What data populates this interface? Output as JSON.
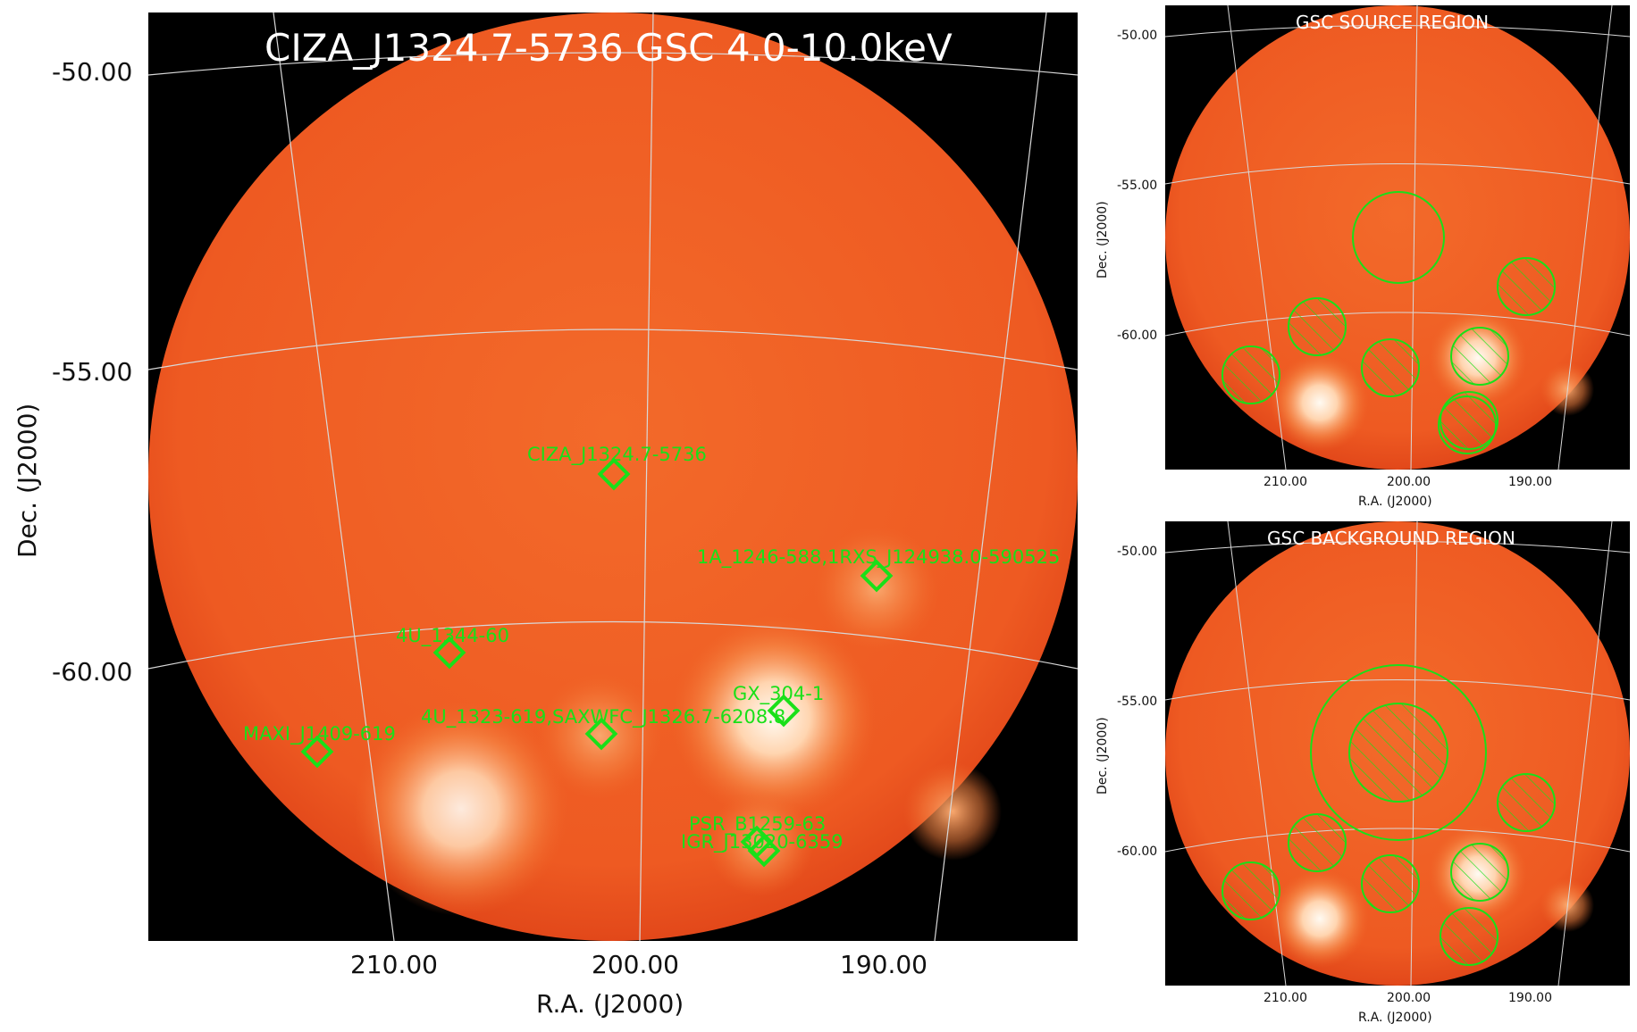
{
  "main": {
    "title": "CIZA_J1324.7-5736 GSC 4.0-10.0keV",
    "ylabel": "Dec. (J2000)",
    "xlabel": "R.A. (J2000)",
    "yticks": [
      "-50.00",
      "-55.00",
      "-60.00"
    ],
    "xticks": [
      "210.00",
      "200.00",
      "190.00"
    ],
    "sources": [
      {
        "name": "CIZA_J1324.7-5736"
      },
      {
        "name": "1A_1246-588,1RXS_J124938.0-590525"
      },
      {
        "name": "4U_1344-60"
      },
      {
        "name": "GX_304-1"
      },
      {
        "name": "4U_1323-619,SAXWFC_J1326.7-6208.8"
      },
      {
        "name": "MAXI_J1409-619"
      },
      {
        "name": "PSR_B1259-63"
      },
      {
        "name": "IGR_J13020-6359"
      }
    ]
  },
  "source_region": {
    "title": "GSC SOURCE REGION",
    "ylabel": "Dec. (J2000)",
    "xlabel": "R.A. (J2000)",
    "yticks": [
      "-50.00",
      "-55.00",
      "-60.00"
    ],
    "xticks": [
      "210.00",
      "200.00",
      "190.00"
    ]
  },
  "background_region": {
    "title": "GSC BACKGROUND REGION",
    "ylabel": "Dec. (J2000)",
    "xlabel": "R.A. (J2000)",
    "yticks": [
      "-50.00",
      "-55.00",
      "-60.00"
    ],
    "xticks": [
      "210.00",
      "200.00",
      "190.00"
    ]
  },
  "colors": {
    "field": "#f05a20",
    "background": "#000000",
    "marker": "#19e019",
    "grid": "#d8d8d8",
    "bright": "#fff4e6"
  }
}
